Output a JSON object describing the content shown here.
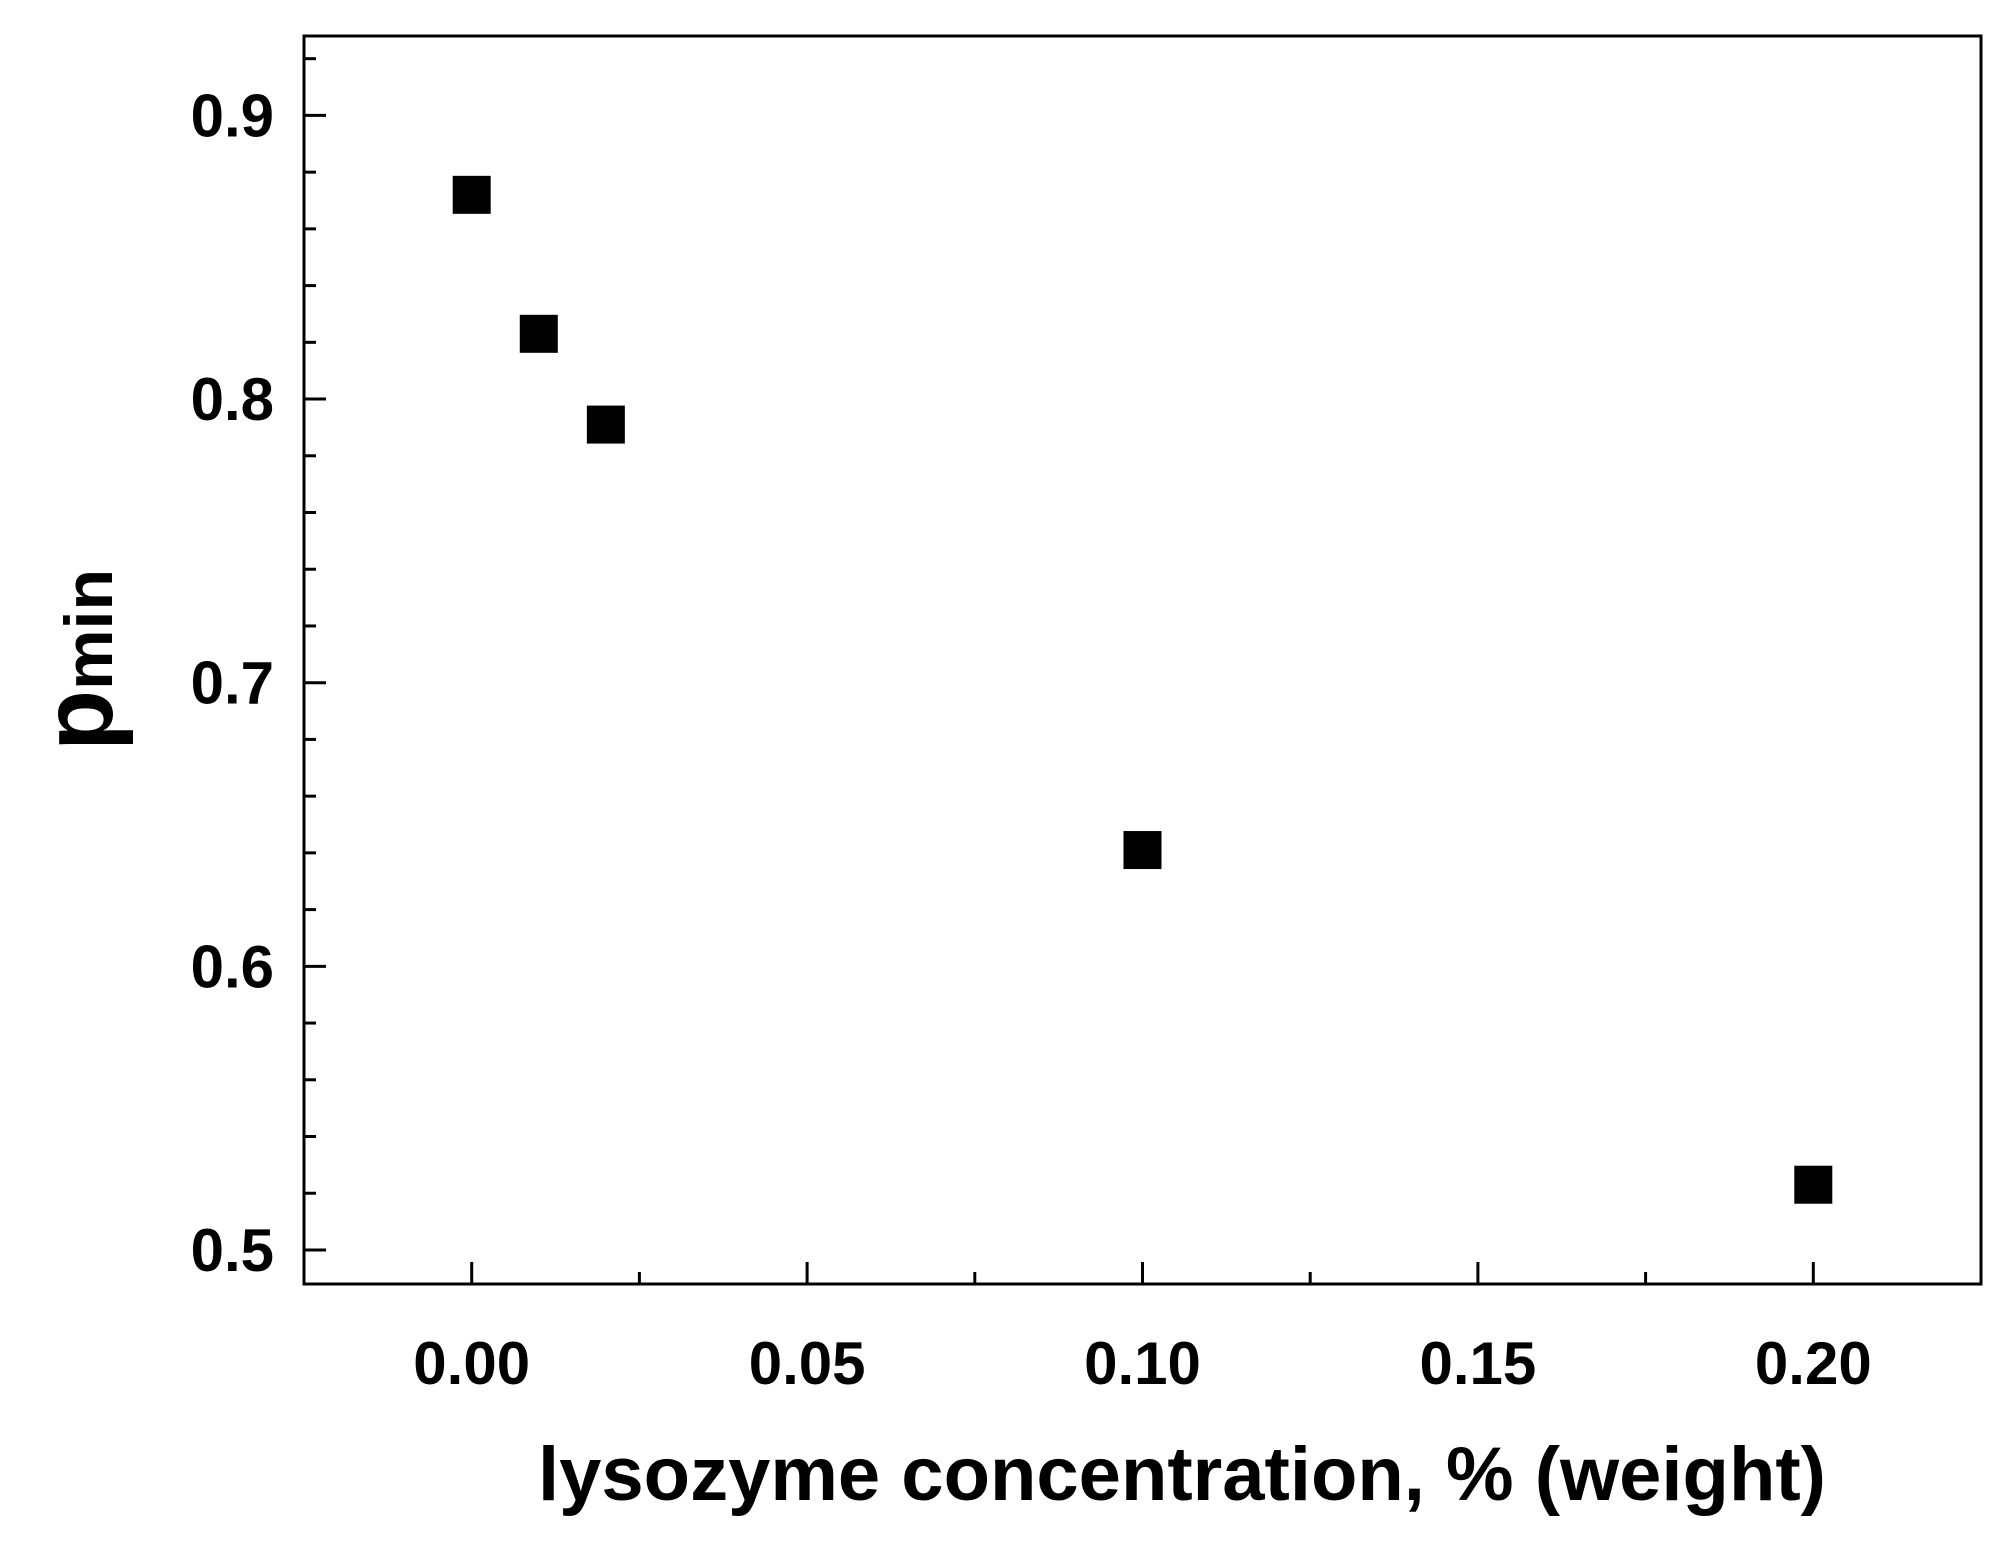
{
  "chart_data": {
    "type": "scatter",
    "xlabel": "lysozyme concentration, % (weight)",
    "ylabel": {
      "base": "p",
      "subscript": "min"
    },
    "xlim": [
      -0.025,
      0.225
    ],
    "ylim": [
      0.488,
      0.928
    ],
    "x_ticks": [
      0.0,
      0.05,
      0.1,
      0.15,
      0.2
    ],
    "x_tick_labels": [
      "0.00",
      "0.05",
      "0.10",
      "0.15",
      "0.20"
    ],
    "x_minor_ticks": [
      0.025,
      0.075,
      0.125,
      0.175
    ],
    "y_ticks": [
      0.5,
      0.6,
      0.7,
      0.8,
      0.9
    ],
    "y_tick_labels": [
      "0.5",
      "0.6",
      "0.7",
      "0.8",
      "0.9"
    ],
    "grid": false,
    "legend": "none",
    "marker": "square",
    "marker_color": "#000000",
    "series": [
      {
        "x": [
          0.0,
          0.01,
          0.02,
          0.1,
          0.2
        ],
        "y": [
          0.872,
          0.823,
          0.791,
          0.641,
          0.523
        ]
      }
    ]
  }
}
